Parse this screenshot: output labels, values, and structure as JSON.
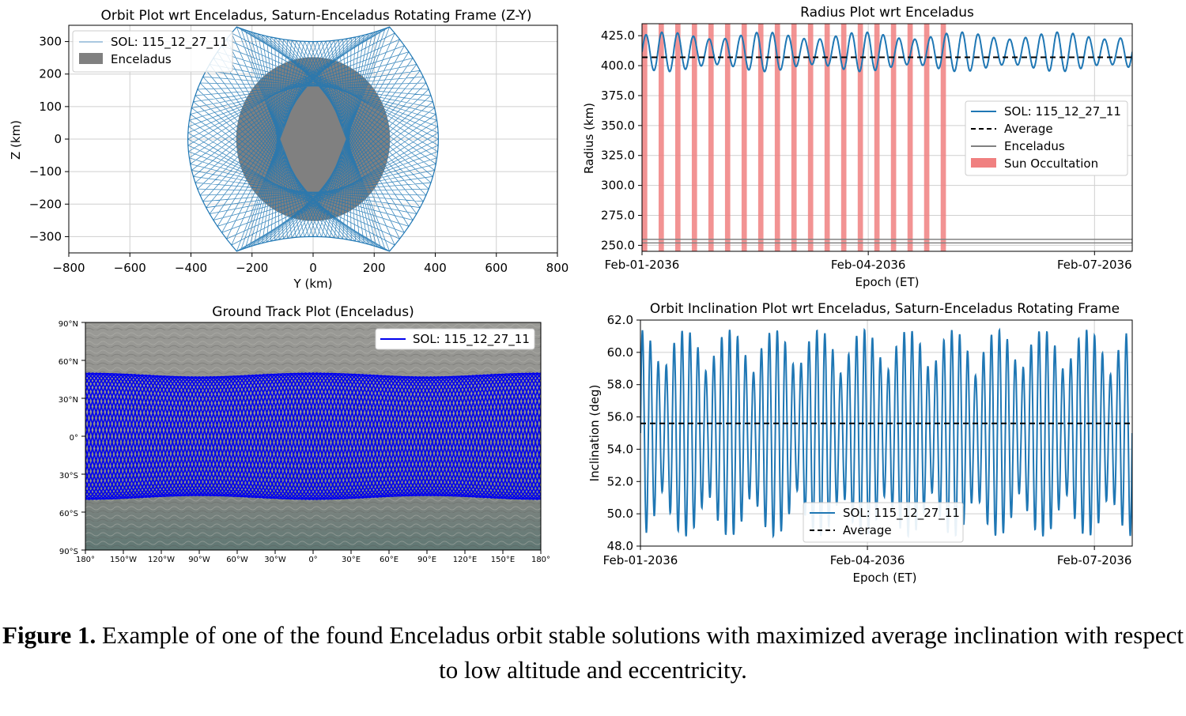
{
  "caption": {
    "label": "Figure 1.",
    "text": " Example of one of the found Enceladus orbit stable solutions with maximized average inclination with respect to low altitude and eccentricity."
  },
  "chart_data": [
    {
      "id": "orbit",
      "type": "line",
      "title": "Orbit Plot wrt Enceladus, Saturn-Enceladus Rotating Frame (Z-Y)",
      "xlabel": "Y (km)",
      "ylabel": "Z (km)",
      "xlim": [
        -800,
        800
      ],
      "ylim": [
        -350,
        350
      ],
      "xticks": [
        -800,
        -600,
        -400,
        -200,
        0,
        200,
        400,
        600,
        800
      ],
      "xtick_labels": [
        "−800",
        "−600",
        "−400",
        "−200",
        "0",
        "200",
        "400",
        "600",
        "800"
      ],
      "yticks": [
        300,
        200,
        100,
        0,
        -100,
        -200,
        -300
      ],
      "ytick_labels": [
        "300",
        "200",
        "100",
        "0",
        "−100",
        "−200",
        "−300"
      ],
      "grid": true,
      "legend_position": "top-left",
      "series": [
        {
          "name": "SOL: 115_12_27_11",
          "color": "#1f77b4",
          "kind": "orbit-envelope",
          "corners": [
            [
              -250,
              345
            ],
            [
              250,
              345
            ],
            [
              -250,
              -345
            ],
            [
              250,
              -345
            ]
          ],
          "max_extent_y": 410,
          "waist_z": 300
        },
        {
          "name": "Enceladus",
          "color": "#808080",
          "kind": "disk",
          "center": [
            0,
            0
          ],
          "radius": 252
        }
      ]
    },
    {
      "id": "radius",
      "type": "line",
      "title": "Radius Plot wrt Enceladus",
      "xlabel": "Epoch (ET)",
      "ylabel": "Radius (km)",
      "xlim": [
        "2036-02-01",
        "2036-02-07 12:00"
      ],
      "ylim": [
        245,
        435
      ],
      "xticks": [
        "2036-02-01",
        "2036-02-04",
        "2036-02-07"
      ],
      "xtick_labels": [
        "Feb-01-2036",
        "Feb-04-2036",
        "Feb-07-2036"
      ],
      "yticks": [
        425,
        400,
        375,
        350,
        325,
        300,
        275,
        250
      ],
      "ytick_labels": [
        "425.0",
        "400.0",
        "375.0",
        "350.0",
        "325.0",
        "300.0",
        "275.0",
        "250.0"
      ],
      "grid": true,
      "legend_position": "center-right",
      "series": [
        {
          "name": "SOL: 115_12_27_11",
          "color": "#1f77b4",
          "oscillation": {
            "mean_km": 410,
            "min_km": 395,
            "max_km": 428,
            "cycles": 31
          }
        },
        {
          "name": "Average",
          "color": "#000000",
          "value_km": 407
        },
        {
          "name": "Enceladus",
          "color": "#808080",
          "values_km": [
            252,
            255
          ]
        },
        {
          "name": "Sun Occultation",
          "color": "#f08080",
          "bands_days_after_start": [
            [
              0.0,
              0.07
            ],
            [
              0.22,
              0.29
            ],
            [
              0.44,
              0.51
            ],
            [
              0.66,
              0.73
            ],
            [
              0.88,
              0.95
            ],
            [
              1.1,
              1.17
            ],
            [
              1.32,
              1.39
            ],
            [
              1.54,
              1.61
            ],
            [
              1.76,
              1.83
            ],
            [
              1.98,
              2.05
            ],
            [
              2.2,
              2.27
            ],
            [
              2.42,
              2.49
            ],
            [
              2.64,
              2.71
            ],
            [
              2.86,
              2.93
            ],
            [
              3.08,
              3.15
            ],
            [
              3.3,
              3.37
            ],
            [
              3.52,
              3.59
            ],
            [
              3.74,
              3.81
            ],
            [
              3.96,
              4.03
            ]
          ]
        }
      ]
    },
    {
      "id": "ground",
      "type": "line",
      "title": "Ground Track Plot (Enceladus)",
      "xlim": [
        -180,
        180
      ],
      "ylim": [
        -90,
        90
      ],
      "xticks": [
        -180,
        -150,
        -120,
        -90,
        -60,
        -30,
        0,
        30,
        60,
        90,
        120,
        150,
        180
      ],
      "xtick_labels": [
        "180°",
        "150°W",
        "120°W",
        "90°W",
        "60°W",
        "30°W",
        "0°",
        "30°E",
        "60°E",
        "90°E",
        "120°E",
        "150°E",
        "180°"
      ],
      "yticks": [
        90,
        60,
        30,
        0,
        -30,
        -60,
        -90
      ],
      "ytick_labels": [
        "90°N",
        "60°N",
        "30°N",
        "0°",
        "30°S",
        "60°S",
        "90°S"
      ],
      "legend_position": "top-right",
      "series": [
        {
          "name": "SOL: 115_12_27_11",
          "color": "#0000ee",
          "latitude_envelope": {
            "min_deg": -50,
            "max_deg": 50
          },
          "crossings": 32
        }
      ]
    },
    {
      "id": "inclination",
      "type": "line",
      "title": "Orbit Inclination Plot wrt Enceladus, Saturn-Enceladus Rotating Frame",
      "xlabel": "Epoch (ET)",
      "ylabel": "Inclination (deg)",
      "xlim": [
        "2036-02-01",
        "2036-02-07 12:00"
      ],
      "ylim": [
        48,
        62
      ],
      "xticks": [
        "2036-02-01",
        "2036-02-04",
        "2036-02-07"
      ],
      "xtick_labels": [
        "Feb-01-2036",
        "Feb-04-2036",
        "Feb-07-2036"
      ],
      "yticks": [
        62,
        60,
        58,
        56,
        54,
        52,
        50,
        48
      ],
      "ytick_labels": [
        "62.0",
        "60.0",
        "58.0",
        "56.0",
        "54.0",
        "52.0",
        "50.0",
        "48.0"
      ],
      "grid": true,
      "legend_position": "lower-center",
      "series": [
        {
          "name": "SOL: 115_12_27_11",
          "color": "#1f77b4",
          "oscillation": {
            "mean_deg": 55.3,
            "min_deg": 48.6,
            "max_deg": 61.4,
            "cycles": 62
          }
        },
        {
          "name": "Average",
          "color": "#000000",
          "value_deg": 55.6
        }
      ]
    }
  ]
}
